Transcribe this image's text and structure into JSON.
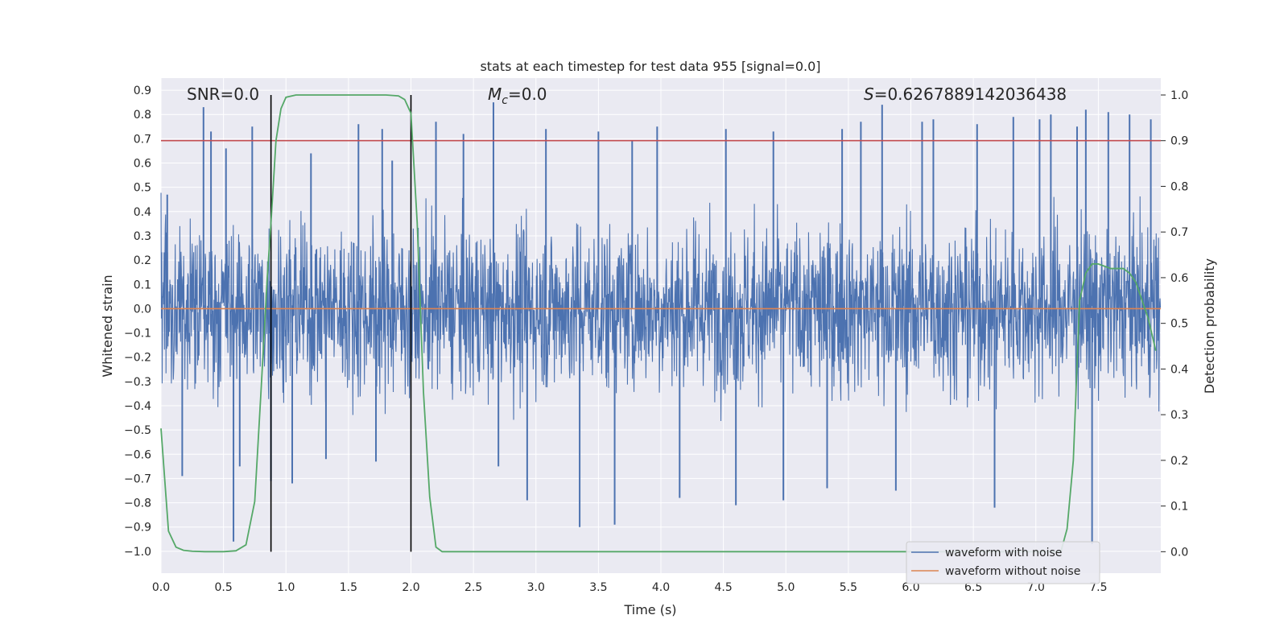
{
  "chart_data": {
    "type": "line",
    "title": "stats at each timestep for test data 955 [signal=0.0]",
    "xlabel": "Time (s)",
    "ylabel": "Whitened strain",
    "y2label": "Detection probability",
    "xlim": [
      0.0,
      8.0
    ],
    "ylim": [
      -1.09,
      0.95
    ],
    "y2lim": [
      -0.047,
      1.037
    ],
    "x_ticks": [
      0.0,
      0.5,
      1.0,
      1.5,
      2.0,
      2.5,
      3.0,
      3.5,
      4.0,
      4.5,
      5.0,
      5.5,
      6.0,
      6.5,
      7.0,
      7.5
    ],
    "x_tick_labels": [
      "0.0",
      "0.5",
      "1.0",
      "1.5",
      "2.0",
      "2.5",
      "3.0",
      "3.5",
      "4.0",
      "4.5",
      "5.0",
      "5.5",
      "6.0",
      "6.5",
      "7.0",
      "7.5"
    ],
    "y_ticks": [
      0.9,
      0.8,
      0.7,
      0.6,
      0.5,
      0.4,
      0.3,
      0.2,
      0.1,
      0.0,
      -0.1,
      -0.2,
      -0.3,
      -0.4,
      -0.5,
      -0.6,
      -0.7,
      -0.8,
      -0.9,
      -1.0
    ],
    "y_tick_labels": [
      "0.9",
      "0.8",
      "0.7",
      "0.6",
      "0.5",
      "0.4",
      "0.3",
      "0.2",
      "0.1",
      "0.0",
      "−0.1",
      "−0.2",
      "−0.3",
      "−0.4",
      "−0.5",
      "−0.6",
      "−0.7",
      "−0.8",
      "−0.9",
      "−1.0"
    ],
    "y2_ticks": [
      1.0,
      0.9,
      0.8,
      0.7,
      0.6,
      0.5,
      0.4,
      0.3,
      0.2,
      0.1,
      0.0
    ],
    "y2_tick_labels": [
      "1.0",
      "0.9",
      "0.8",
      "0.7",
      "0.6",
      "0.5",
      "0.4",
      "0.3",
      "0.2",
      "0.1",
      "0.0"
    ],
    "grid": true,
    "legend_position": "lower-right",
    "annotations": {
      "snr": "SNR=0.0",
      "mc_symbol": "M",
      "mc_sub": "c",
      "mc_value": "=0.0",
      "s_symbol": "S",
      "s_value": "=0.6267889142036438"
    },
    "series": [
      {
        "name": "waveform with noise",
        "color": "#4c72b0",
        "description_kind": "noisy strain trace, values mostly within -0.45..0.45 with spikes up to ~0.85 and down to ~-0.95",
        "spikes": [
          [
            0.05,
            0.47
          ],
          [
            0.17,
            -0.69
          ],
          [
            0.34,
            0.83
          ],
          [
            0.4,
            0.73
          ],
          [
            0.52,
            0.66
          ],
          [
            0.58,
            -0.96
          ],
          [
            0.63,
            -0.65
          ],
          [
            0.73,
            0.75
          ],
          [
            0.88,
            -0.71
          ],
          [
            1.05,
            -0.72
          ],
          [
            1.2,
            0.64
          ],
          [
            1.32,
            -0.62
          ],
          [
            1.58,
            0.76
          ],
          [
            1.72,
            -0.63
          ],
          [
            1.77,
            0.74
          ],
          [
            1.85,
            0.61
          ],
          [
            2.2,
            0.77
          ],
          [
            2.42,
            0.72
          ],
          [
            2.66,
            0.85
          ],
          [
            2.7,
            -0.65
          ],
          [
            2.93,
            -0.79
          ],
          [
            3.08,
            0.74
          ],
          [
            3.35,
            -0.9
          ],
          [
            3.5,
            0.73
          ],
          [
            3.63,
            -0.89
          ],
          [
            3.77,
            0.69
          ],
          [
            3.97,
            0.75
          ],
          [
            4.15,
            -0.78
          ],
          [
            4.52,
            0.74
          ],
          [
            4.6,
            -0.81
          ],
          [
            4.9,
            0.73
          ],
          [
            4.98,
            -0.79
          ],
          [
            5.33,
            -0.74
          ],
          [
            5.45,
            0.74
          ],
          [
            5.6,
            0.77
          ],
          [
            5.77,
            0.84
          ],
          [
            5.88,
            -0.75
          ],
          [
            6.09,
            0.77
          ],
          [
            6.18,
            0.78
          ],
          [
            6.53,
            0.76
          ],
          [
            6.67,
            -0.82
          ],
          [
            6.82,
            0.79
          ],
          [
            7.03,
            0.78
          ],
          [
            7.12,
            0.8
          ],
          [
            7.33,
            0.75
          ],
          [
            7.4,
            0.82
          ],
          [
            7.45,
            -0.97
          ],
          [
            7.58,
            0.81
          ],
          [
            7.75,
            0.8
          ],
          [
            7.92,
            0.78
          ]
        ]
      },
      {
        "name": "waveform without noise",
        "color": "#dd8452",
        "x": [
          0.0,
          8.0
        ],
        "y": [
          0.0,
          0.0
        ]
      }
    ],
    "probability_series": {
      "color": "#55a868",
      "x": [
        0.0,
        0.06,
        0.12,
        0.18,
        0.25,
        0.35,
        0.5,
        0.6,
        0.68,
        0.75,
        0.8,
        0.85,
        0.88,
        0.92,
        0.96,
        1.0,
        1.08,
        1.5,
        1.8,
        1.9,
        1.95,
        2.0,
        2.05,
        2.1,
        2.15,
        2.2,
        2.25,
        7.2,
        7.25,
        7.3,
        7.35,
        7.4,
        7.45,
        7.5,
        7.6,
        7.7,
        7.75,
        7.8,
        7.85,
        7.9,
        7.96
      ],
      "y": [
        0.27,
        0.045,
        0.01,
        0.003,
        0.001,
        0.0,
        0.0,
        0.002,
        0.015,
        0.11,
        0.35,
        0.6,
        0.72,
        0.9,
        0.97,
        0.995,
        1.0,
        1.0,
        1.0,
        0.998,
        0.99,
        0.96,
        0.72,
        0.35,
        0.12,
        0.01,
        0.0,
        0.0,
        0.05,
        0.2,
        0.55,
        0.61,
        0.63,
        0.63,
        0.62,
        0.62,
        0.61,
        0.59,
        0.55,
        0.51,
        0.44
      ]
    },
    "threshold": {
      "color": "#c44e52",
      "y2": 0.9
    },
    "vlines": {
      "color": "#000000",
      "x": [
        0.88,
        2.0
      ],
      "y2_range": [
        0.0,
        1.0
      ]
    }
  }
}
